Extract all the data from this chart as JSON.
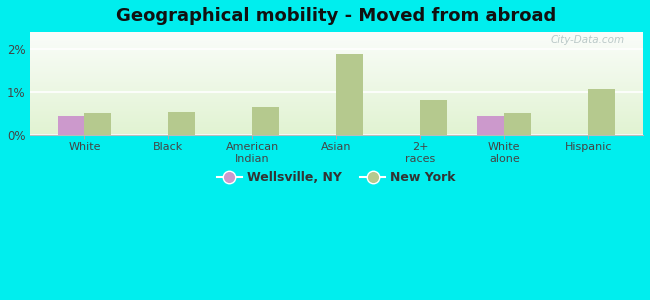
{
  "title": "Geographical mobility - Moved from abroad",
  "categories": [
    "White",
    "Black",
    "American\nIndian",
    "Asian",
    "2+\nraces",
    "White\nalone",
    "Hispanic"
  ],
  "wellsville_values": [
    0.45,
    0.0,
    0.0,
    0.0,
    0.0,
    0.45,
    0.0
  ],
  "newyork_values": [
    0.52,
    0.55,
    0.65,
    1.88,
    0.82,
    0.52,
    1.07
  ],
  "wellsville_color": "#cc99cc",
  "newyork_color": "#b5c98e",
  "background_color": "#00eeee",
  "title_fontsize": 13,
  "legend_labels": [
    "Wellsville, NY",
    "New York"
  ],
  "ylim": [
    0,
    2.4
  ],
  "yticks": [
    0,
    1,
    2
  ],
  "ytick_labels": [
    "0%",
    "1%",
    "2%"
  ],
  "bar_width": 0.32,
  "watermark": "City-Data.com"
}
